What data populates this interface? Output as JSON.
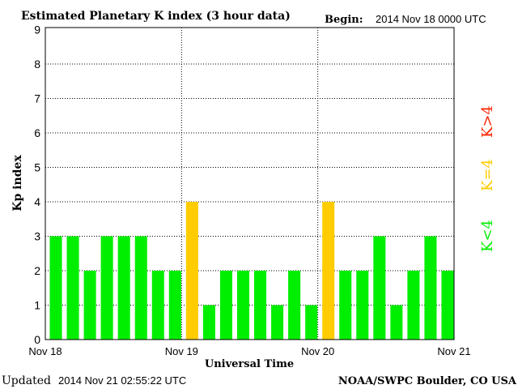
{
  "chart_data": {
    "type": "bar",
    "title": "Estimated Planetary K index (3 hour data)",
    "begin_label": "Begin:",
    "begin_value": "2014 Nov 18 0000 UTC",
    "xlabel": "Universal Time",
    "ylabel": "Kp index",
    "ylim": [
      0,
      9
    ],
    "yticks": [
      "0",
      "1",
      "2",
      "3",
      "4",
      "5",
      "6",
      "7",
      "8",
      "9"
    ],
    "xticks": [
      "Nov 18",
      "Nov 19",
      "Nov 20",
      "Nov 21"
    ],
    "grid": true,
    "values": [
      3,
      3,
      2,
      3,
      3,
      3,
      2,
      2,
      4,
      1,
      2,
      2,
      2,
      1,
      2,
      1,
      4,
      2,
      2,
      3,
      1,
      2,
      3,
      2
    ],
    "colors": {
      "below_4": "#00ee00",
      "equal_4": "#ffcc00",
      "above_4": "#ff2200"
    },
    "legend": {
      "above": "K>4",
      "equal": "K=4",
      "below": "K<4",
      "placement": "right"
    }
  },
  "footer": {
    "updated_label": "Updated",
    "updated_value": "2014 Nov 21 02:55:22 UTC",
    "source": "NOAA/SWPC Boulder, CO USA"
  }
}
